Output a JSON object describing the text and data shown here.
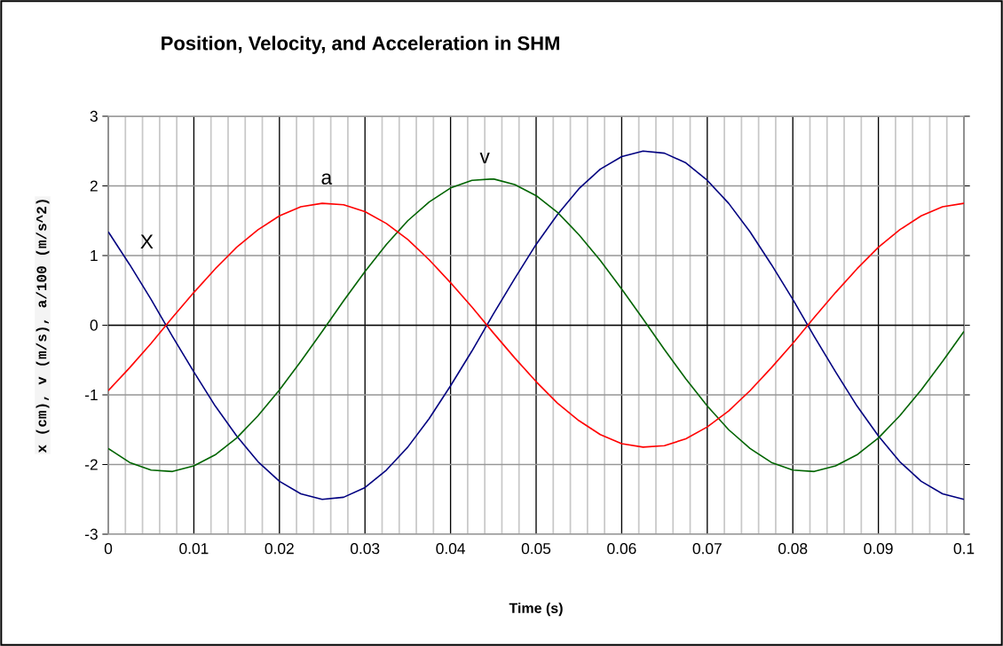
{
  "chart_data": {
    "type": "line",
    "title": "Position, Velocity, and Acceleration in SHM",
    "xlabel": "Time (s)",
    "ylabel": "x (cm), v (m/s), a/100 (m/s^2)",
    "x": [
      0,
      0.0025,
      0.005,
      0.0075,
      0.01,
      0.0125,
      0.015,
      0.0175,
      0.02,
      0.0225,
      0.025,
      0.0275,
      0.03,
      0.0325,
      0.035,
      0.0375,
      0.04,
      0.0425,
      0.045,
      0.0475,
      0.05,
      0.0525,
      0.055,
      0.0575,
      0.06,
      0.0625,
      0.065,
      0.0675,
      0.07,
      0.0725,
      0.075,
      0.0775,
      0.08,
      0.0825,
      0.085,
      0.0875,
      0.09,
      0.0925,
      0.095,
      0.0975,
      0.1
    ],
    "series": [
      {
        "name": "X",
        "color": "#000080",
        "values": [
          1.34,
          0.87,
          0.37,
          -0.16,
          -0.67,
          -1.16,
          -1.59,
          -1.96,
          -2.24,
          -2.42,
          -2.5,
          -2.47,
          -2.33,
          -2.08,
          -1.75,
          -1.34,
          -0.87,
          -0.37,
          0.16,
          0.67,
          1.16,
          1.59,
          1.96,
          2.24,
          2.42,
          2.5,
          2.47,
          2.33,
          2.08,
          1.75,
          1.34,
          0.87,
          0.37,
          -0.16,
          -0.67,
          -1.16,
          -1.59,
          -1.96,
          -2.24,
          -2.42,
          -2.5
        ]
      },
      {
        "name": "v",
        "color": "#006400",
        "values": [
          -1.77,
          -1.97,
          -2.08,
          -2.1,
          -2.02,
          -1.86,
          -1.62,
          -1.3,
          -0.93,
          -0.52,
          -0.09,
          0.35,
          0.77,
          1.16,
          1.5,
          1.77,
          1.97,
          2.08,
          2.1,
          2.02,
          1.86,
          1.62,
          1.3,
          0.93,
          0.52,
          0.09,
          -0.35,
          -0.77,
          -1.16,
          -1.5,
          -1.77,
          -1.97,
          -2.08,
          -2.1,
          -2.02,
          -1.86,
          -1.62,
          -1.3,
          -0.93,
          -0.52,
          -0.09
        ]
      },
      {
        "name": "a",
        "color": "#ff0000",
        "values": [
          -0.94,
          -0.61,
          -0.26,
          0.11,
          0.47,
          0.81,
          1.12,
          1.37,
          1.57,
          1.7,
          1.75,
          1.73,
          1.63,
          1.46,
          1.23,
          0.94,
          0.61,
          0.26,
          -0.11,
          -0.47,
          -0.81,
          -1.12,
          -1.37,
          -1.57,
          -1.7,
          -1.75,
          -1.73,
          -1.63,
          -1.46,
          -1.23,
          -0.94,
          -0.61,
          -0.26,
          0.11,
          0.47,
          0.81,
          1.12,
          1.37,
          1.57,
          1.7,
          1.75
        ]
      }
    ],
    "xlim": [
      0,
      0.1
    ],
    "ylim": [
      -3,
      3
    ],
    "xticks": [
      {
        "value": 0,
        "label": "0"
      },
      {
        "value": 0.002,
        "label": null
      },
      {
        "value": 0.004,
        "label": null
      },
      {
        "value": 0.006,
        "label": null
      },
      {
        "value": 0.008,
        "label": null
      },
      {
        "value": 0.01,
        "label": "0.01"
      },
      {
        "value": 0.012,
        "label": null
      },
      {
        "value": 0.014,
        "label": null
      },
      {
        "value": 0.016,
        "label": null
      },
      {
        "value": 0.018,
        "label": null
      },
      {
        "value": 0.02,
        "label": "0.02"
      },
      {
        "value": 0.022,
        "label": null
      },
      {
        "value": 0.024,
        "label": null
      },
      {
        "value": 0.026,
        "label": null
      },
      {
        "value": 0.028,
        "label": null
      },
      {
        "value": 0.03,
        "label": "0.03"
      },
      {
        "value": 0.032,
        "label": null
      },
      {
        "value": 0.034,
        "label": null
      },
      {
        "value": 0.036,
        "label": null
      },
      {
        "value": 0.038,
        "label": null
      },
      {
        "value": 0.04,
        "label": "0.04"
      },
      {
        "value": 0.042,
        "label": null
      },
      {
        "value": 0.044,
        "label": null
      },
      {
        "value": 0.046,
        "label": null
      },
      {
        "value": 0.048,
        "label": null
      },
      {
        "value": 0.05,
        "label": "0.05"
      },
      {
        "value": 0.052,
        "label": null
      },
      {
        "value": 0.054,
        "label": null
      },
      {
        "value": 0.056,
        "label": null
      },
      {
        "value": 0.058,
        "label": null
      },
      {
        "value": 0.06,
        "label": "0.06"
      },
      {
        "value": 0.062,
        "label": null
      },
      {
        "value": 0.064,
        "label": null
      },
      {
        "value": 0.066,
        "label": null
      },
      {
        "value": 0.068,
        "label": null
      },
      {
        "value": 0.07,
        "label": "0.07"
      },
      {
        "value": 0.072,
        "label": null
      },
      {
        "value": 0.074,
        "label": null
      },
      {
        "value": 0.076,
        "label": null
      },
      {
        "value": 0.078,
        "label": null
      },
      {
        "value": 0.08,
        "label": "0.08"
      },
      {
        "value": 0.082,
        "label": null
      },
      {
        "value": 0.084,
        "label": null
      },
      {
        "value": 0.086,
        "label": null
      },
      {
        "value": 0.088,
        "label": null
      },
      {
        "value": 0.09,
        "label": "0.09"
      },
      {
        "value": 0.092,
        "label": null
      },
      {
        "value": 0.094,
        "label": null
      },
      {
        "value": 0.096,
        "label": null
      },
      {
        "value": 0.098,
        "label": null
      },
      {
        "value": 0.1,
        "label": "0.1"
      }
    ],
    "yticks": [
      -3,
      -2,
      -1,
      0,
      1,
      2,
      3
    ],
    "grid": true,
    "marker": "none",
    "line_style": "solid"
  }
}
